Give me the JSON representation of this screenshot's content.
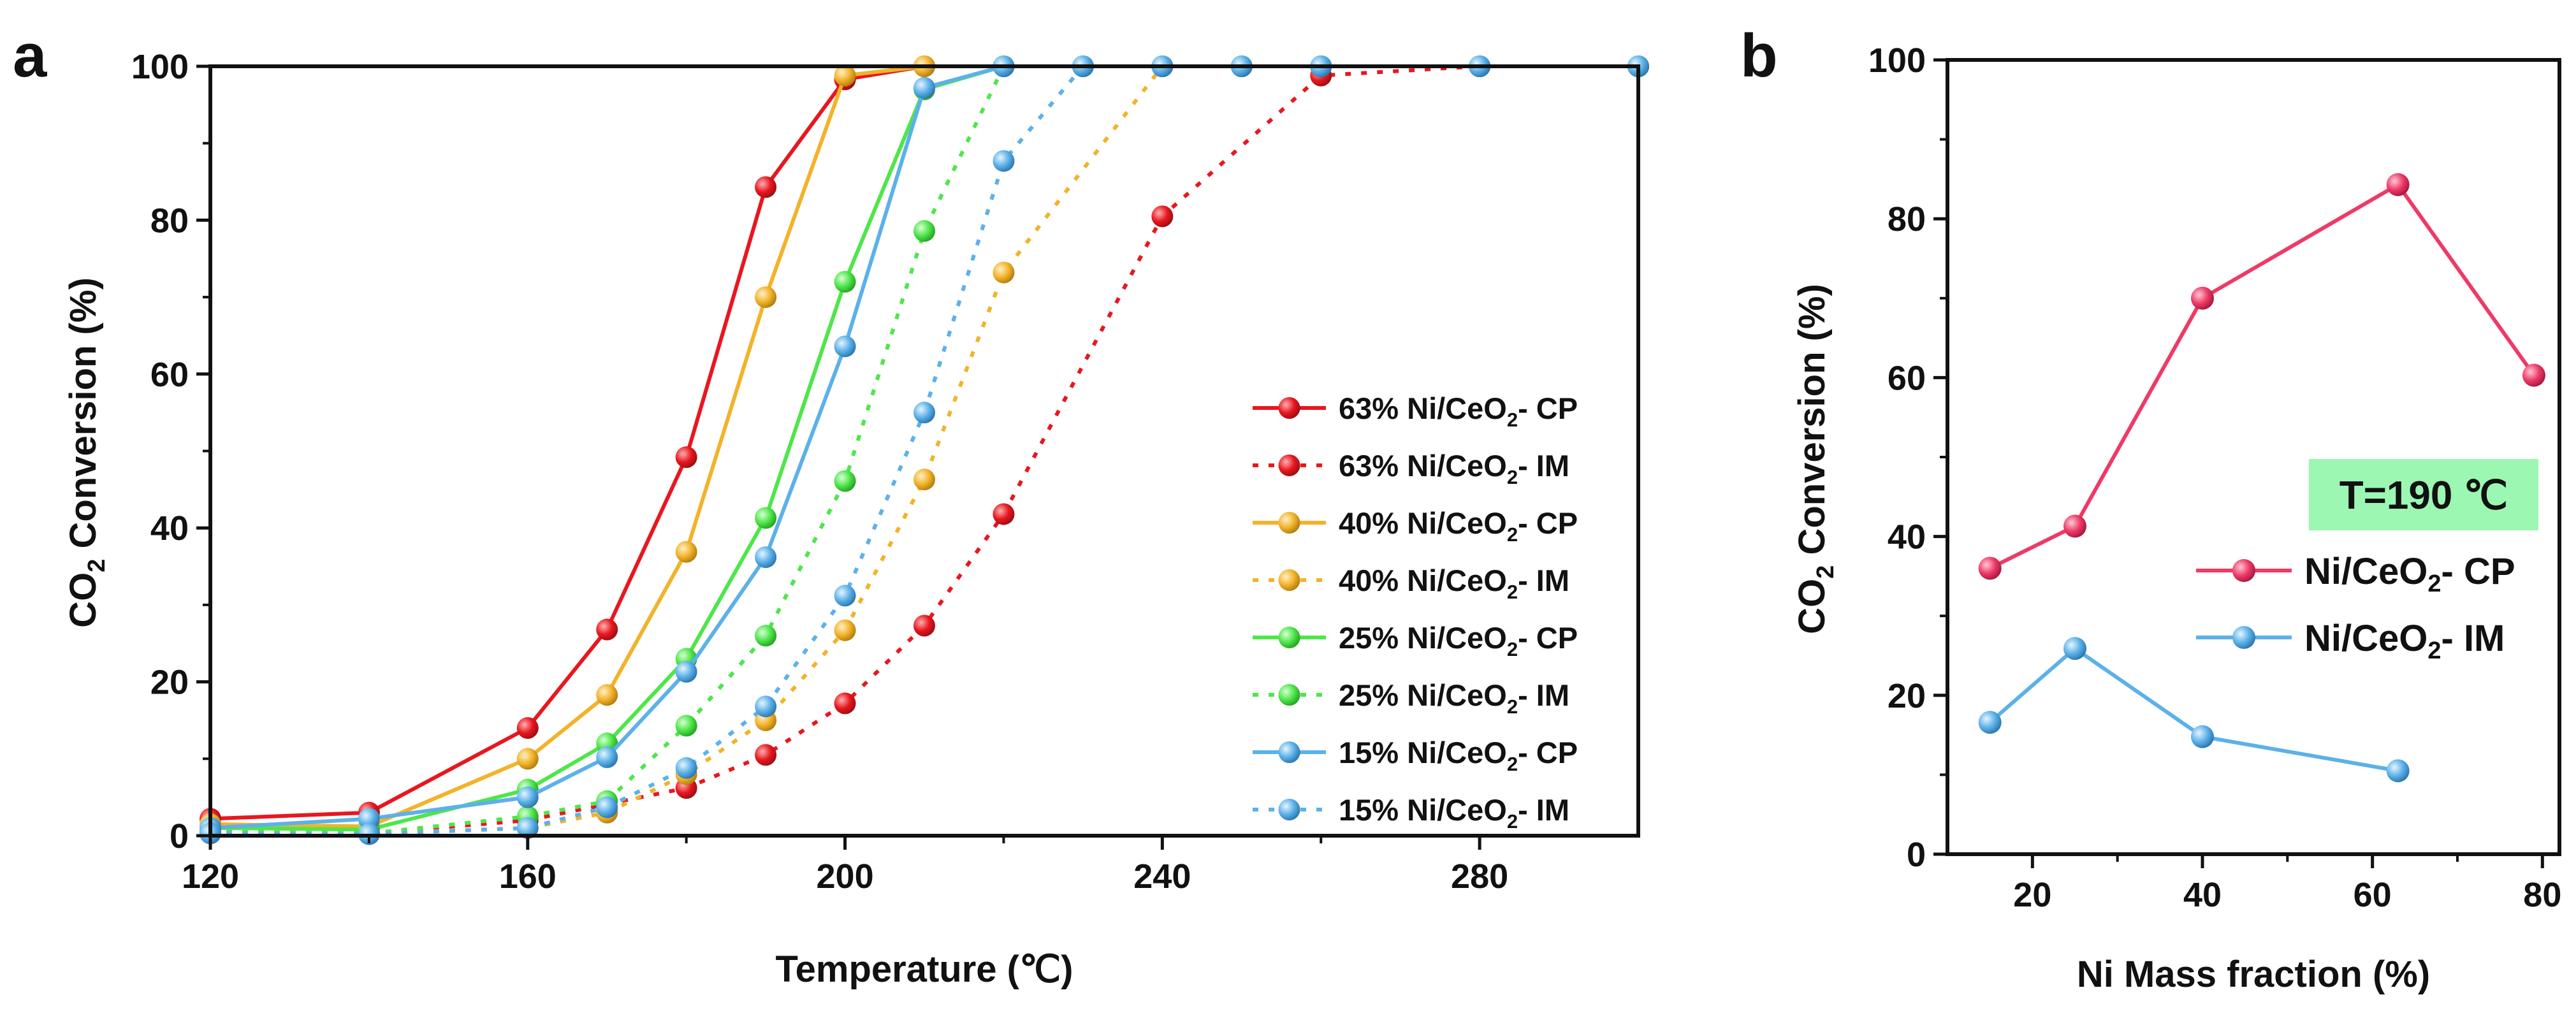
{
  "colors": {
    "red": "#e8171f",
    "orange": "#f2b32a",
    "green": "#4ee64a",
    "blue": "#5cb1e9",
    "pink": "#ee3a67",
    "note_bg": "#9cf7b2"
  },
  "chart_data": [
    {
      "id": "a",
      "panel_label": "a",
      "type": "line",
      "xlabel": "Temperature (℃)",
      "ylabel_main": "CO",
      "ylabel_sub": "2",
      "ylabel_rest": " Conversion (%)",
      "xlim": [
        120,
        300
      ],
      "ylim": [
        0,
        100
      ],
      "xticks": [
        "120",
        "160",
        "200",
        "240",
        "280"
      ],
      "yticks": [
        "0",
        "20",
        "40",
        "60",
        "80",
        "100"
      ],
      "legend_position": "center-right",
      "series": [
        {
          "name_pre": "63% Ni/CeO",
          "name_sub": "2",
          "name_post": "- CP",
          "color_key": "red",
          "dashed": false,
          "x": [
            120,
            140,
            160,
            170,
            180,
            190,
            200,
            210,
            220,
            230,
            240,
            250,
            260,
            280,
            300
          ],
          "y": [
            2.2,
            3,
            14,
            26.8,
            49.2,
            84.3,
            98.3,
            100,
            100,
            100,
            100,
            100,
            100,
            100,
            100
          ]
        },
        {
          "name_pre": "63% Ni/CeO",
          "name_sub": "2",
          "name_post": "- IM",
          "color_key": "red",
          "dashed": true,
          "x": [
            120,
            140,
            160,
            180,
            190,
            200,
            210,
            220,
            240,
            260,
            280,
            300
          ],
          "y": [
            0.5,
            0.3,
            2,
            6.2,
            10.5,
            17.2,
            27.3,
            41.8,
            80.5,
            98.8,
            100,
            100
          ]
        },
        {
          "name_pre": "40% Ni/CeO",
          "name_sub": "2",
          "name_post": "- CP",
          "color_key": "orange",
          "dashed": false,
          "x": [
            120,
            140,
            160,
            170,
            180,
            190,
            200,
            210,
            220,
            230,
            240,
            250,
            260,
            280,
            300
          ],
          "y": [
            1.5,
            1.2,
            10,
            18.3,
            36.9,
            70,
            98.8,
            100,
            100,
            100,
            100,
            100,
            100,
            100,
            100
          ]
        },
        {
          "name_pre": "40% Ni/CeO",
          "name_sub": "2",
          "name_post": "- IM",
          "color_key": "orange",
          "dashed": true,
          "x": [
            120,
            140,
            160,
            170,
            180,
            190,
            200,
            210,
            220,
            240,
            250,
            260,
            280,
            300
          ],
          "y": [
            0.5,
            0.3,
            1,
            3,
            8,
            15,
            26.7,
            46.3,
            73.2,
            100,
            100,
            100,
            100,
            100
          ]
        },
        {
          "name_pre": "25% Ni/CeO",
          "name_sub": "2",
          "name_post": "- CP",
          "color_key": "green",
          "dashed": false,
          "x": [
            120,
            140,
            160,
            170,
            180,
            190,
            200,
            210,
            220,
            230,
            240,
            250,
            260,
            280,
            300
          ],
          "y": [
            1,
            0.8,
            6,
            12,
            23,
            41.3,
            72,
            97,
            100,
            100,
            100,
            100,
            100,
            100,
            100
          ]
        },
        {
          "name_pre": "25% Ni/CeO",
          "name_sub": "2",
          "name_post": "- IM",
          "color_key": "green",
          "dashed": true,
          "x": [
            120,
            140,
            160,
            170,
            180,
            190,
            200,
            210,
            220,
            230,
            240,
            250,
            260,
            280,
            300
          ],
          "y": [
            0.5,
            0.3,
            2.5,
            4.5,
            14.3,
            26,
            46.1,
            78.6,
            100,
            100,
            100,
            100,
            100,
            100,
            100
          ]
        },
        {
          "name_pre": "15% Ni/CeO",
          "name_sub": "2",
          "name_post": "- CP",
          "color_key": "blue",
          "dashed": false,
          "x": [
            120,
            140,
            160,
            170,
            180,
            190,
            200,
            210,
            220,
            230,
            240,
            250,
            260,
            280,
            300
          ],
          "y": [
            1,
            2.2,
            5,
            10.2,
            21.3,
            36.2,
            63.6,
            97.2,
            100,
            100,
            100,
            100,
            100,
            100,
            100
          ]
        },
        {
          "name_pre": "15% Ni/CeO",
          "name_sub": "2",
          "name_post": "- IM",
          "color_key": "blue",
          "dashed": true,
          "x": [
            120,
            140,
            160,
            170,
            180,
            190,
            200,
            210,
            220,
            230,
            240,
            250,
            260,
            280,
            300
          ],
          "y": [
            0.3,
            0.2,
            1,
            3.7,
            8.8,
            16.8,
            31.2,
            55,
            87.7,
            100,
            100,
            100,
            100,
            100,
            100
          ]
        }
      ]
    },
    {
      "id": "b",
      "panel_label": "b",
      "type": "line",
      "xlabel": "Ni Mass fraction (%)",
      "ylabel_main": "CO",
      "ylabel_sub": "2",
      "ylabel_rest": " Conversion (%)",
      "xlim": [
        10,
        82
      ],
      "ylim": [
        0,
        100
      ],
      "xticks": [
        "20",
        "40",
        "60",
        "80"
      ],
      "yticks": [
        "0",
        "20",
        "40",
        "60",
        "80",
        "100"
      ],
      "annotation": "T=190 ℃",
      "legend_position": "right",
      "series": [
        {
          "name_pre": "Ni/CeO",
          "name_sub": "2",
          "name_post": "- CP",
          "color_key": "pink",
          "dashed": false,
          "x": [
            15,
            25,
            40,
            63,
            79
          ],
          "y": [
            36,
            41.3,
            70,
            84.3,
            60.3
          ]
        },
        {
          "name_pre": "Ni/CeO",
          "name_sub": "2",
          "name_post": "- IM",
          "color_key": "blue",
          "dashed": false,
          "x": [
            15,
            25,
            40,
            63
          ],
          "y": [
            16.6,
            25.9,
            14.8,
            10.5
          ]
        }
      ]
    }
  ]
}
